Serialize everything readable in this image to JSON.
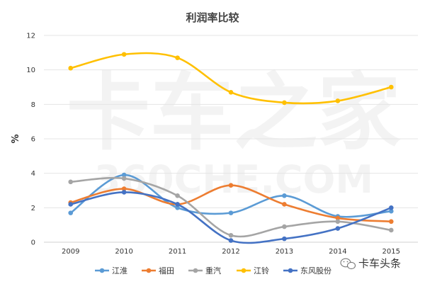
{
  "chart_data": {
    "type": "line",
    "title": "利润率比较",
    "xlabel": "",
    "ylabel": "%",
    "categories": [
      "2009",
      "2010",
      "2011",
      "2012",
      "2013",
      "2014",
      "2015"
    ],
    "ylim": [
      0,
      12
    ],
    "yticks": [
      "0",
      "2",
      "4",
      "6",
      "8",
      "10",
      "12"
    ],
    "grid": "horizontal",
    "legend_position": "bottom",
    "series": [
      {
        "name": "江淮",
        "color": "#5B9BD5",
        "values": [
          1.7,
          3.9,
          2.0,
          1.7,
          2.7,
          1.5,
          1.8
        ]
      },
      {
        "name": "福田",
        "color": "#ED7D31",
        "values": [
          2.3,
          3.1,
          2.2,
          3.3,
          2.2,
          1.4,
          1.2
        ]
      },
      {
        "name": "重汽",
        "color": "#A5A5A5",
        "values": [
          3.5,
          3.7,
          2.7,
          0.4,
          0.9,
          1.2,
          0.7
        ]
      },
      {
        "name": "江铃",
        "color": "#FFC000",
        "values": [
          10.1,
          10.9,
          10.7,
          8.7,
          8.1,
          8.2,
          9.0
        ]
      },
      {
        "name": "东风股份",
        "color": "#4472C4",
        "values": [
          2.2,
          2.9,
          2.2,
          0.1,
          0.2,
          0.8,
          2.0
        ]
      }
    ]
  },
  "watermark": {
    "main": "卡车之家",
    "sub": "360CHE.COM"
  },
  "brand": {
    "name": "卡车头条",
    "icon": "wechat-icon"
  }
}
